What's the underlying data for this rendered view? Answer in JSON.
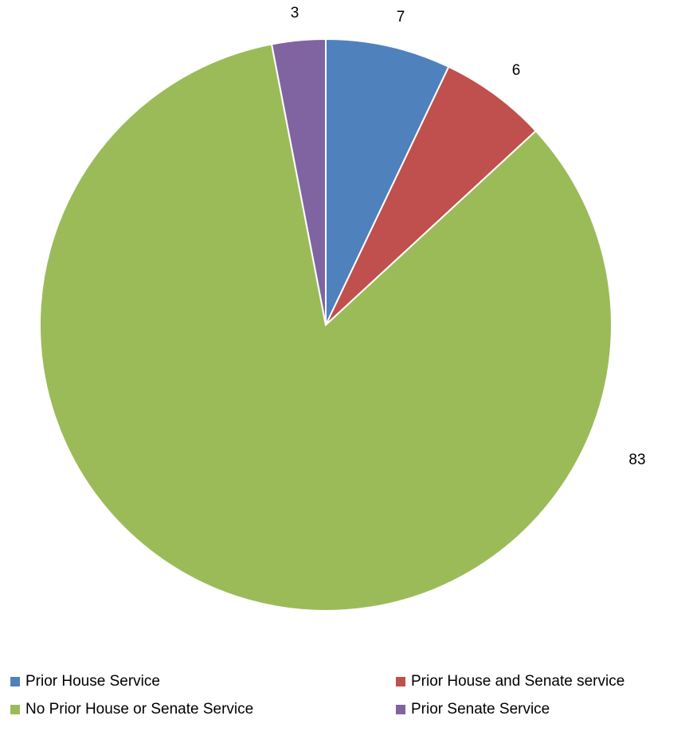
{
  "chart_data": {
    "type": "pie",
    "title": "",
    "categories": [
      "Prior House Service",
      "Prior House and Senate service",
      "No Prior House or Senate Service",
      "Prior Senate Service"
    ],
    "values": [
      7,
      6,
      83,
      3
    ],
    "colors": [
      "#4F81BD",
      "#C0504D",
      "#9BBB59",
      "#8064A2"
    ],
    "start_angle_deg": 0,
    "direction": "clockwise",
    "data_labels": true,
    "legend_position": "bottom"
  }
}
